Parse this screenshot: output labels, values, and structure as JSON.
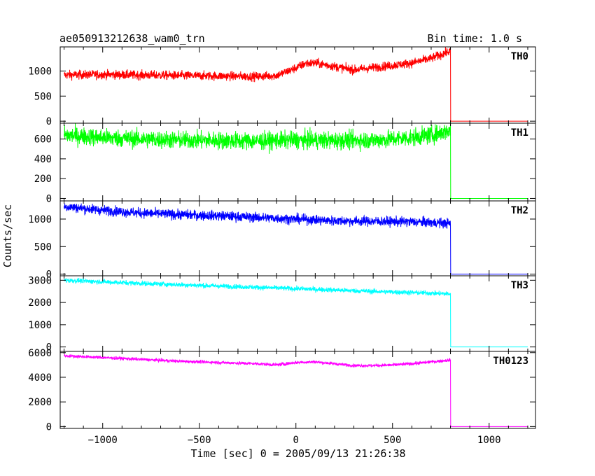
{
  "header": {
    "title": "ae050913212638_wam0_trn",
    "bin_time": "Bin time: 1.0 s"
  },
  "xlabel": "Time [sec] 0 = 2005/09/13 21:26:38",
  "ylabel": "Counts/sec",
  "chart_data": [
    {
      "type": "line",
      "title": "ae050913212638_wam0_trn",
      "panel": "TH0",
      "color": "#ff0000",
      "xlim": [
        -1220,
        1240
      ],
      "ylim": [
        -40,
        1480
      ],
      "yticks": [
        0,
        500,
        1000
      ],
      "ytick_labels": [
        "0",
        "500",
        "1000"
      ],
      "x": [
        -1200,
        -1000,
        -800,
        -600,
        -400,
        -200,
        -100,
        0,
        50,
        100,
        200,
        300,
        400,
        500,
        600,
        700,
        800,
        801,
        1200
      ],
      "y": [
        920,
        930,
        920,
        910,
        900,
        890,
        910,
        1060,
        1150,
        1160,
        1090,
        1020,
        1070,
        1110,
        1160,
        1250,
        1400,
        0,
        0
      ],
      "noise": 45
    },
    {
      "type": "line",
      "panel": "TH1",
      "color": "#00ff00",
      "xlim": [
        -1220,
        1240
      ],
      "ylim": [
        -25,
        760
      ],
      "yticks": [
        0,
        200,
        400,
        600
      ],
      "ytick_labels": [
        "0",
        "200",
        "400",
        "600"
      ],
      "x": [
        -1200,
        -1000,
        -800,
        -600,
        -400,
        -200,
        0,
        200,
        400,
        500,
        600,
        700,
        800,
        801,
        1200
      ],
      "y": [
        640,
        615,
        600,
        590,
        585,
        580,
        590,
        585,
        590,
        600,
        615,
        640,
        690,
        0,
        0
      ],
      "noise": 45
    },
    {
      "type": "line",
      "panel": "TH2",
      "color": "#0000ff",
      "xlim": [
        -1220,
        1240
      ],
      "ylim": [
        -30,
        1330
      ],
      "yticks": [
        0,
        500,
        1000
      ],
      "ytick_labels": [
        "0",
        "500",
        "1000"
      ],
      "x": [
        -1200,
        -1000,
        -800,
        -600,
        -400,
        -200,
        0,
        200,
        400,
        600,
        700,
        800,
        801,
        1200
      ],
      "y": [
        1230,
        1160,
        1110,
        1080,
        1060,
        1030,
        1000,
        970,
        960,
        950,
        940,
        920,
        0,
        0
      ],
      "noise": 45
    },
    {
      "type": "line",
      "panel": "TH3",
      "color": "#00ffff",
      "xlim": [
        -1220,
        1240
      ],
      "ylim": [
        -200,
        3200
      ],
      "yticks": [
        0,
        1000,
        2000,
        3000
      ],
      "ytick_labels": [
        "0",
        "1000",
        "2000",
        "3000"
      ],
      "x": [
        -1200,
        -1000,
        -800,
        -600,
        -400,
        -200,
        0,
        200,
        400,
        600,
        700,
        800,
        801,
        1200
      ],
      "y": [
        3000,
        2930,
        2860,
        2800,
        2740,
        2680,
        2620,
        2560,
        2500,
        2450,
        2420,
        2380,
        0,
        0
      ],
      "noise": 55
    },
    {
      "type": "line",
      "panel": "TH0123",
      "color": "#ff00ff",
      "xlim": [
        -1220,
        1240
      ],
      "ylim": [
        -150,
        6100
      ],
      "yticks": [
        0,
        2000,
        4000,
        6000
      ],
      "ytick_labels": [
        "0",
        "2000",
        "4000",
        "6000"
      ],
      "x": [
        -1200,
        -1000,
        -800,
        -600,
        -400,
        -200,
        -100,
        0,
        100,
        200,
        300,
        400,
        500,
        600,
        700,
        800,
        801,
        1200
      ],
      "y": [
        5750,
        5600,
        5450,
        5300,
        5200,
        5100,
        5000,
        5200,
        5250,
        5100,
        4950,
        4950,
        5000,
        5100,
        5250,
        5400,
        0,
        0
      ],
      "noise": 65
    }
  ],
  "xaxis": {
    "ticks": [
      -1000,
      -500,
      0,
      500,
      1000
    ],
    "tick_labels": [
      "−1000",
      "−500",
      "0",
      "500",
      "1000"
    ]
  }
}
